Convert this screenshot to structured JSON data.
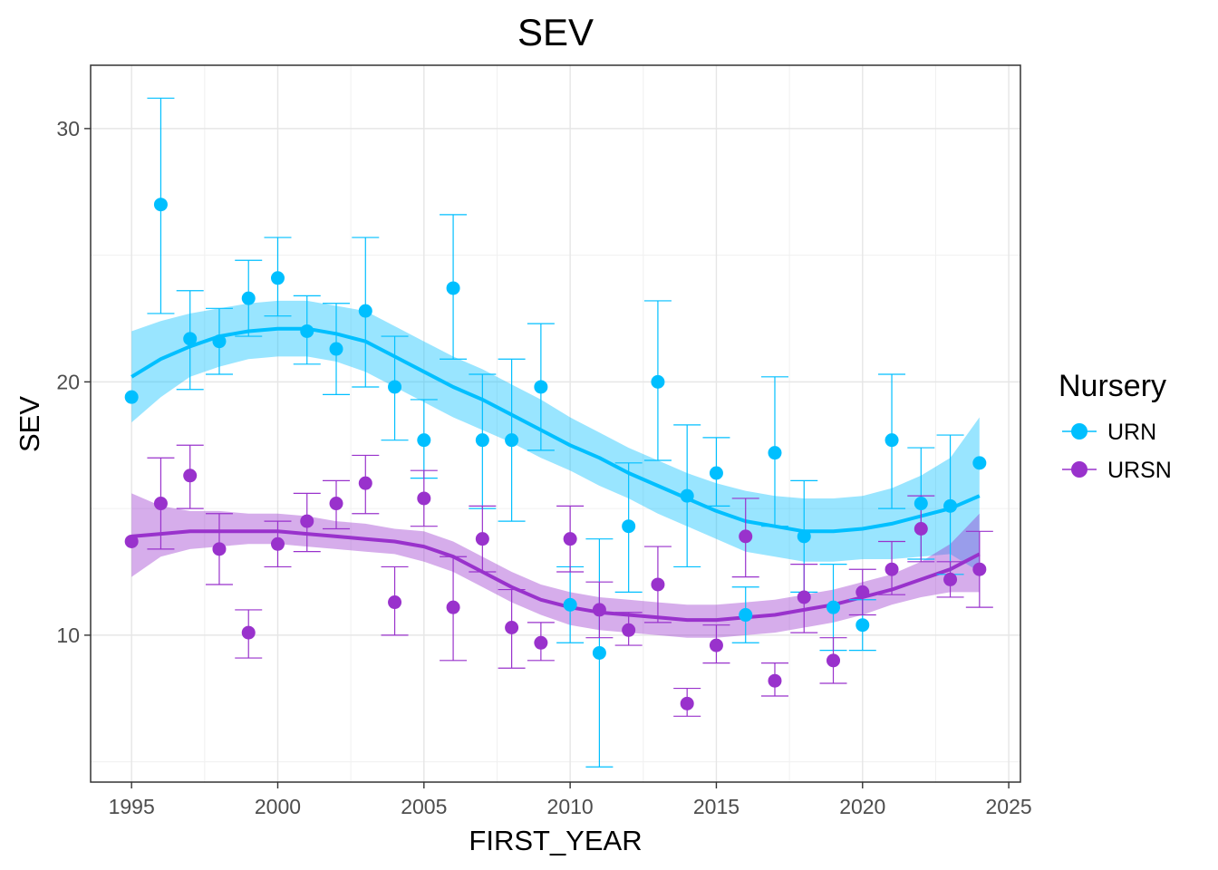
{
  "chart_data": {
    "type": "scatter",
    "title": "SEV",
    "xlabel": "FIRST_YEAR",
    "ylabel": "SEV",
    "xlim": [
      1993.6,
      2025.4
    ],
    "ylim": [
      4.2,
      32.5
    ],
    "x_ticks": [
      1995,
      2000,
      2005,
      2010,
      2015,
      2020,
      2025
    ],
    "y_ticks": [
      10,
      20,
      30
    ],
    "grid": true,
    "legend": {
      "title": "Nursery",
      "position": "right"
    },
    "series": [
      {
        "name": "URN",
        "color": "#00bfff",
        "points": [
          {
            "x": 1995,
            "y": 19.4,
            "lo": null,
            "hi": null
          },
          {
            "x": 1996,
            "y": 27.0,
            "lo": 22.7,
            "hi": 31.2
          },
          {
            "x": 1997,
            "y": 21.7,
            "lo": 19.7,
            "hi": 23.6
          },
          {
            "x": 1998,
            "y": 21.6,
            "lo": 20.3,
            "hi": 22.9
          },
          {
            "x": 1999,
            "y": 23.3,
            "lo": 21.8,
            "hi": 24.8
          },
          {
            "x": 2000,
            "y": 24.1,
            "lo": 22.6,
            "hi": 25.7
          },
          {
            "x": 2001,
            "y": 22.0,
            "lo": 20.7,
            "hi": 23.4
          },
          {
            "x": 2002,
            "y": 21.3,
            "lo": 19.5,
            "hi": 23.1
          },
          {
            "x": 2003,
            "y": 22.8,
            "lo": 19.8,
            "hi": 25.7
          },
          {
            "x": 2004,
            "y": 19.8,
            "lo": 17.7,
            "hi": 21.8
          },
          {
            "x": 2005,
            "y": 17.7,
            "lo": 16.2,
            "hi": 19.3
          },
          {
            "x": 2006,
            "y": 23.7,
            "lo": 20.9,
            "hi": 26.6
          },
          {
            "x": 2007,
            "y": 17.7,
            "lo": 15.0,
            "hi": 20.3
          },
          {
            "x": 2008,
            "y": 17.7,
            "lo": 14.5,
            "hi": 20.9
          },
          {
            "x": 2009,
            "y": 19.8,
            "lo": 17.3,
            "hi": 22.3
          },
          {
            "x": 2010,
            "y": 11.2,
            "lo": 9.7,
            "hi": 12.7
          },
          {
            "x": 2011,
            "y": 9.3,
            "lo": 4.8,
            "hi": 13.8
          },
          {
            "x": 2012,
            "y": 14.3,
            "lo": 11.7,
            "hi": 16.8
          },
          {
            "x": 2013,
            "y": 20.0,
            "lo": 16.9,
            "hi": 23.2
          },
          {
            "x": 2014,
            "y": 15.5,
            "lo": 12.7,
            "hi": 18.3
          },
          {
            "x": 2015,
            "y": 16.4,
            "lo": 15.1,
            "hi": 17.8
          },
          {
            "x": 2016,
            "y": 10.8,
            "lo": 9.7,
            "hi": 11.9
          },
          {
            "x": 2017,
            "y": 17.2,
            "lo": 14.3,
            "hi": 20.2
          },
          {
            "x": 2018,
            "y": 13.9,
            "lo": 11.7,
            "hi": 16.1
          },
          {
            "x": 2019,
            "y": 11.1,
            "lo": 9.4,
            "hi": 12.8
          },
          {
            "x": 2020,
            "y": 10.4,
            "lo": 9.4,
            "hi": 11.4
          },
          {
            "x": 2021,
            "y": 17.7,
            "lo": 15.0,
            "hi": 20.3
          },
          {
            "x": 2022,
            "y": 15.2,
            "lo": 13.0,
            "hi": 17.4
          },
          {
            "x": 2023,
            "y": 15.1,
            "lo": 12.4,
            "hi": 17.9
          },
          {
            "x": 2024,
            "y": 16.8,
            "lo": null,
            "hi": null
          }
        ],
        "smooth": {
          "x": [
            1995,
            1996,
            1997,
            1998,
            1999,
            2000,
            2001,
            2002,
            2003,
            2004,
            2005,
            2006,
            2007,
            2008,
            2009,
            2010,
            2011,
            2012,
            2013,
            2014,
            2015,
            2016,
            2017,
            2018,
            2019,
            2020,
            2021,
            2022,
            2023,
            2024
          ],
          "y": [
            20.2,
            20.9,
            21.4,
            21.8,
            22.0,
            22.1,
            22.1,
            21.9,
            21.6,
            21.0,
            20.4,
            19.8,
            19.3,
            18.7,
            18.1,
            17.5,
            17.0,
            16.4,
            15.9,
            15.4,
            14.9,
            14.5,
            14.3,
            14.1,
            14.1,
            14.2,
            14.4,
            14.7,
            15.0,
            15.5
          ],
          "lo": [
            18.4,
            19.4,
            20.2,
            20.6,
            20.9,
            21.0,
            21.0,
            20.8,
            20.4,
            19.8,
            19.2,
            18.6,
            18.1,
            17.6,
            17.0,
            16.5,
            15.9,
            15.4,
            14.8,
            14.3,
            13.8,
            13.3,
            13.1,
            12.9,
            12.9,
            13.0,
            13.0,
            13.1,
            13.2,
            12.5
          ],
          "hi": [
            22.0,
            22.4,
            22.7,
            22.9,
            23.1,
            23.2,
            23.2,
            23.0,
            22.8,
            22.2,
            21.6,
            21.0,
            20.5,
            19.9,
            19.3,
            18.6,
            18.0,
            17.4,
            16.9,
            16.4,
            16.0,
            15.7,
            15.5,
            15.4,
            15.4,
            15.5,
            15.8,
            16.3,
            17.0,
            18.6
          ]
        }
      },
      {
        "name": "URSN",
        "color": "#9932cc",
        "points": [
          {
            "x": 1995,
            "y": 13.7,
            "lo": null,
            "hi": null
          },
          {
            "x": 1996,
            "y": 15.2,
            "lo": 13.4,
            "hi": 17.0
          },
          {
            "x": 1997,
            "y": 16.3,
            "lo": 15.0,
            "hi": 17.5
          },
          {
            "x": 1998,
            "y": 13.4,
            "lo": 12.0,
            "hi": 14.8
          },
          {
            "x": 1999,
            "y": 10.1,
            "lo": 9.1,
            "hi": 11.0
          },
          {
            "x": 2000,
            "y": 13.6,
            "lo": 12.7,
            "hi": 14.5
          },
          {
            "x": 2001,
            "y": 14.5,
            "lo": 13.3,
            "hi": 15.6
          },
          {
            "x": 2002,
            "y": 15.2,
            "lo": 14.2,
            "hi": 16.1
          },
          {
            "x": 2003,
            "y": 16.0,
            "lo": 14.8,
            "hi": 17.1
          },
          {
            "x": 2004,
            "y": 11.3,
            "lo": 10.0,
            "hi": 12.7
          },
          {
            "x": 2005,
            "y": 15.4,
            "lo": 14.3,
            "hi": 16.5
          },
          {
            "x": 2006,
            "y": 11.1,
            "lo": 9.0,
            "hi": 13.1
          },
          {
            "x": 2007,
            "y": 13.8,
            "lo": 12.5,
            "hi": 15.1
          },
          {
            "x": 2008,
            "y": 10.3,
            "lo": 8.7,
            "hi": 11.8
          },
          {
            "x": 2009,
            "y": 9.7,
            "lo": 9.0,
            "hi": 10.5
          },
          {
            "x": 2010,
            "y": 13.8,
            "lo": 12.5,
            "hi": 15.1
          },
          {
            "x": 2011,
            "y": 11.0,
            "lo": 9.9,
            "hi": 12.1
          },
          {
            "x": 2012,
            "y": 10.2,
            "lo": 9.6,
            "hi": 10.9
          },
          {
            "x": 2013,
            "y": 12.0,
            "lo": 10.5,
            "hi": 13.5
          },
          {
            "x": 2014,
            "y": 7.3,
            "lo": 6.8,
            "hi": 7.9
          },
          {
            "x": 2015,
            "y": 9.6,
            "lo": 8.9,
            "hi": 10.4
          },
          {
            "x": 2016,
            "y": 13.9,
            "lo": 12.3,
            "hi": 15.4
          },
          {
            "x": 2017,
            "y": 8.2,
            "lo": 7.6,
            "hi": 8.9
          },
          {
            "x": 2018,
            "y": 11.5,
            "lo": 10.1,
            "hi": 12.8
          },
          {
            "x": 2019,
            "y": 9.0,
            "lo": 8.1,
            "hi": 9.9
          },
          {
            "x": 2020,
            "y": 11.7,
            "lo": 10.8,
            "hi": 12.6
          },
          {
            "x": 2021,
            "y": 12.6,
            "lo": 11.6,
            "hi": 13.7
          },
          {
            "x": 2022,
            "y": 14.2,
            "lo": 12.9,
            "hi": 15.5
          },
          {
            "x": 2023,
            "y": 12.2,
            "lo": 11.5,
            "hi": 12.9
          },
          {
            "x": 2024,
            "y": 12.6,
            "lo": 11.1,
            "hi": 14.1
          }
        ],
        "smooth": {
          "x": [
            1995,
            1996,
            1997,
            1998,
            1999,
            2000,
            2001,
            2002,
            2003,
            2004,
            2005,
            2006,
            2007,
            2008,
            2009,
            2010,
            2011,
            2012,
            2013,
            2014,
            2015,
            2016,
            2017,
            2018,
            2019,
            2020,
            2021,
            2022,
            2023,
            2024
          ],
          "y": [
            13.9,
            14.0,
            14.1,
            14.1,
            14.1,
            14.1,
            14.0,
            13.9,
            13.8,
            13.7,
            13.5,
            13.1,
            12.5,
            11.9,
            11.4,
            11.1,
            10.9,
            10.8,
            10.7,
            10.6,
            10.6,
            10.7,
            10.8,
            11.0,
            11.2,
            11.5,
            11.8,
            12.2,
            12.6,
            13.2
          ],
          "lo": [
            12.3,
            13.1,
            13.4,
            13.5,
            13.6,
            13.6,
            13.5,
            13.4,
            13.3,
            13.2,
            12.9,
            12.5,
            11.9,
            11.3,
            10.8,
            10.4,
            10.2,
            10.1,
            10.0,
            9.9,
            9.9,
            10.0,
            10.1,
            10.3,
            10.5,
            10.8,
            11.2,
            11.5,
            11.7,
            11.7
          ],
          "hi": [
            15.6,
            15.1,
            14.9,
            14.9,
            14.8,
            14.8,
            14.7,
            14.5,
            14.4,
            14.2,
            14.1,
            13.7,
            13.1,
            12.5,
            12.0,
            11.7,
            11.5,
            11.4,
            11.3,
            11.2,
            11.2,
            11.3,
            11.4,
            11.6,
            11.8,
            12.1,
            12.4,
            12.9,
            13.6,
            14.8
          ]
        }
      }
    ]
  }
}
